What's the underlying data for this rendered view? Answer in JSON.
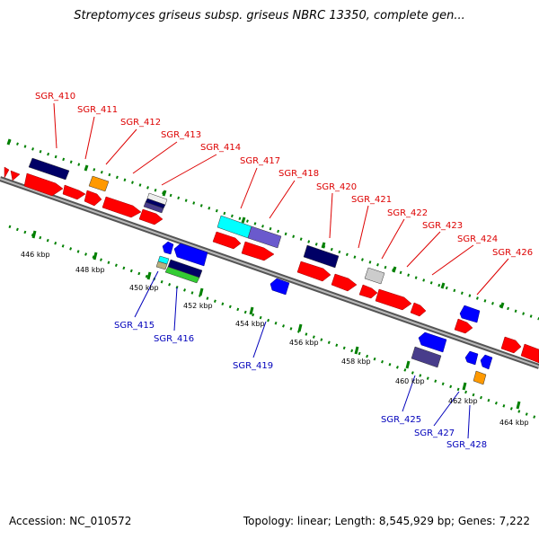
{
  "title": "Streptomyces griseus subsp. griseus NBRC 13350, complete gen...",
  "footer": {
    "accession": "Accession: NC_010572",
    "summary": "Topology: linear; Length: 8,545,929 bp; Genes: 7,222"
  },
  "colors": {
    "forward_gene": "#ff0000",
    "reverse_gene": "#0000ff",
    "forward_label": "#dd0000",
    "reverse_label": "#0000bb",
    "backbone": "#999999",
    "tick": "#008000",
    "navy": "#000066",
    "orange": "#ff9900",
    "cyan": "#00ffff",
    "lavender": "#6a5acd",
    "slate": "#483d8b",
    "grey": "#cccccc",
    "green": "#33cc33",
    "tan": "#b8b080"
  },
  "scale_labels": [
    "446 kbp",
    "448 kbp",
    "450 kbp",
    "452 kbp",
    "454 kbp",
    "456 kbp",
    "458 kbp",
    "460 kbp",
    "462 kbp",
    "464 kbp"
  ],
  "forward_labels": [
    "SGR_410",
    "SGR_411",
    "SGR_412",
    "SGR_413",
    "SGR_414",
    "SGR_417",
    "SGR_418",
    "SGR_420",
    "SGR_421",
    "SGR_422",
    "SGR_423",
    "SGR_424",
    "SGR_426"
  ],
  "reverse_labels": [
    "SGR_415",
    "SGR_416",
    "SGR_419",
    "SGR_425",
    "SGR_427",
    "SGR_428"
  ]
}
